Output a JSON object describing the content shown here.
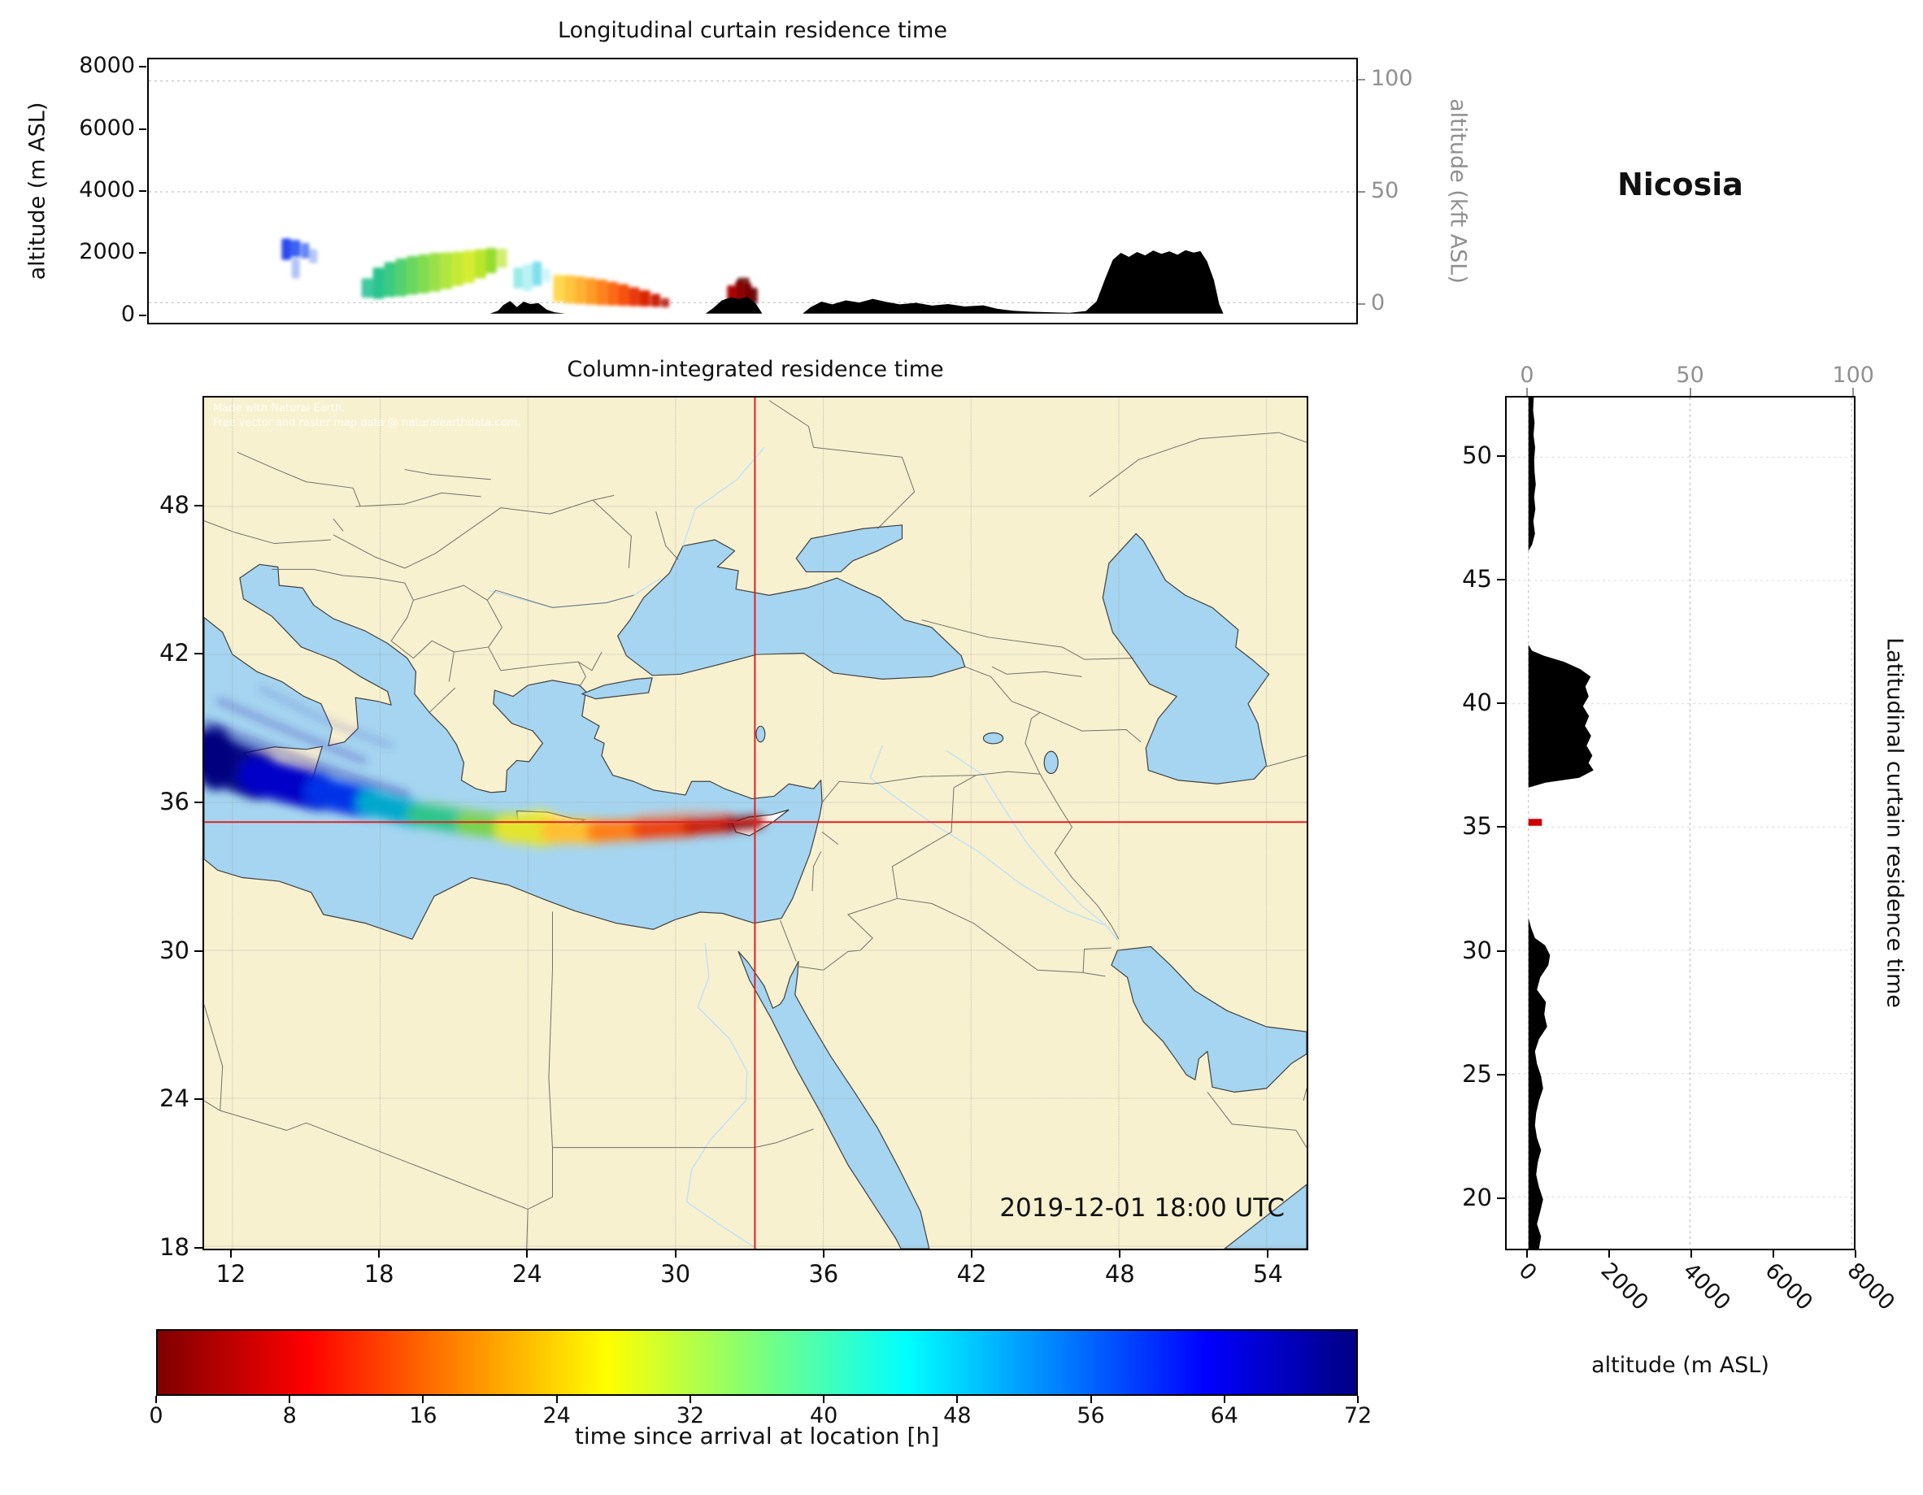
{
  "titles": {
    "longitudinal": "Longitudinal curtain residence time",
    "map": "Column-integrated residence time",
    "latitudinal": "Latitudinal curtain residence time",
    "station": "Nicosia"
  },
  "labels": {
    "alt_m": "altitude (m ASL)",
    "alt_kft": "altitude (kft ASL)",
    "colorbar": "time since arrival at location [h]",
    "timestamp": "2019-12-01 18:00 UTC",
    "attr1": "Made with Natural Earth.",
    "attr2": "Free vector and raster map data @ naturalearthdata.com."
  },
  "chart_data": {
    "type": "heatmap",
    "station": {
      "name": "Nicosia",
      "lon": 33.22,
      "lat": 35.2
    },
    "timestamp": "2019-12-01 18:00 UTC",
    "axes": {
      "lon_range": [
        10.85,
        55.63
      ],
      "lat_range": [
        17.9,
        52.42
      ],
      "alt_range_m": [
        -300,
        8300
      ],
      "alt_ticks_m": [
        0,
        2000,
        4000,
        6000,
        8000
      ],
      "kft_ticks": [
        0,
        50,
        100
      ],
      "lon_ticks": [
        12,
        18,
        24,
        30,
        36,
        42,
        48,
        54
      ],
      "lat_ticks": [
        18,
        24,
        30,
        36,
        42,
        48
      ],
      "lat_ticks_curtain": [
        20,
        25,
        30,
        35,
        40,
        45,
        50
      ]
    },
    "colorbar": {
      "ticks": [
        0,
        8,
        16,
        24,
        32,
        40,
        48,
        56,
        64,
        72
      ],
      "stops": [
        [
          0,
          "#7f0000"
        ],
        [
          12.5,
          "#ff0000"
        ],
        [
          25,
          "#ff8400"
        ],
        [
          37.5,
          "#ffff00"
        ],
        [
          50,
          "#7dff7a"
        ],
        [
          62.5,
          "#00ffff"
        ],
        [
          75,
          "#0082ff"
        ],
        [
          87.5,
          "#0000ff"
        ],
        [
          100,
          "#000084"
        ]
      ]
    },
    "lon_curtain": {
      "terrain": [
        [
          10.85,
          0
        ],
        [
          23.5,
          0
        ],
        [
          23.8,
          90
        ],
        [
          24.0,
          280
        ],
        [
          24.25,
          410
        ],
        [
          24.5,
          210
        ],
        [
          24.75,
          390
        ],
        [
          25.0,
          310
        ],
        [
          25.3,
          340
        ],
        [
          25.6,
          130
        ],
        [
          25.9,
          40
        ],
        [
          26.3,
          0
        ],
        [
          31.5,
          0
        ],
        [
          31.8,
          190
        ],
        [
          32.1,
          430
        ],
        [
          32.45,
          530
        ],
        [
          32.75,
          470
        ],
        [
          33.05,
          550
        ],
        [
          33.35,
          340
        ],
        [
          33.6,
          0
        ],
        [
          35.1,
          0
        ],
        [
          35.4,
          210
        ],
        [
          35.8,
          390
        ],
        [
          36.2,
          300
        ],
        [
          36.7,
          430
        ],
        [
          37.2,
          360
        ],
        [
          37.7,
          480
        ],
        [
          38.2,
          380
        ],
        [
          38.7,
          300
        ],
        [
          39.3,
          350
        ],
        [
          39.9,
          260
        ],
        [
          40.5,
          310
        ],
        [
          41.1,
          230
        ],
        [
          41.8,
          270
        ],
        [
          42.3,
          160
        ],
        [
          42.9,
          90
        ],
        [
          43.6,
          60
        ],
        [
          44.3,
          40
        ],
        [
          45.0,
          25
        ],
        [
          45.6,
          80
        ],
        [
          46.0,
          400
        ],
        [
          46.3,
          1100
        ],
        [
          46.6,
          1750
        ],
        [
          46.9,
          1980
        ],
        [
          47.2,
          1850
        ],
        [
          47.5,
          2010
        ],
        [
          47.8,
          1900
        ],
        [
          48.1,
          2060
        ],
        [
          48.4,
          1950
        ],
        [
          48.7,
          2030
        ],
        [
          49.0,
          1920
        ],
        [
          49.3,
          2070
        ],
        [
          49.6,
          1990
        ],
        [
          49.85,
          2040
        ],
        [
          50.1,
          1700
        ],
        [
          50.35,
          1100
        ],
        [
          50.55,
          300
        ],
        [
          50.7,
          0
        ],
        [
          55.63,
          0
        ]
      ],
      "plume": [
        [
          15.95,
          0.35,
          1750,
          2450,
          "#2a4bf0",
          1
        ],
        [
          16.3,
          0.35,
          1850,
          2400,
          "#3a62f2",
          1
        ],
        [
          16.65,
          0.3,
          1800,
          2300,
          "#5c80f5",
          0.95
        ],
        [
          16.3,
          0.3,
          1150,
          1800,
          "#7d9bf7",
          0.6
        ],
        [
          16.95,
          0.3,
          1650,
          2100,
          "#93aef8",
          0.7
        ],
        [
          18.95,
          0.42,
          520,
          1150,
          "#35c79b",
          0.95
        ],
        [
          19.37,
          0.42,
          480,
          1500,
          "#2cc490",
          1
        ],
        [
          19.79,
          0.42,
          540,
          1680,
          "#3aca82",
          1
        ],
        [
          20.21,
          0.42,
          560,
          1800,
          "#52d170",
          1
        ],
        [
          20.63,
          0.42,
          620,
          1880,
          "#69d75f",
          1
        ],
        [
          21.05,
          0.42,
          660,
          1930,
          "#82dc50",
          1
        ],
        [
          21.47,
          0.42,
          720,
          1980,
          "#9ae146",
          1
        ],
        [
          21.89,
          0.42,
          800,
          2000,
          "#b0e63c",
          1
        ],
        [
          22.31,
          0.42,
          900,
          2020,
          "#c4ea35",
          1
        ],
        [
          22.73,
          0.42,
          1000,
          2060,
          "#d4ed30",
          1
        ],
        [
          23.15,
          0.42,
          1150,
          2100,
          "#b9e62c",
          1
        ],
        [
          23.55,
          0.4,
          1320,
          2140,
          "#95dd2e",
          1
        ],
        [
          23.95,
          0.38,
          1500,
          2120,
          "#cdeb60",
          0.9
        ],
        [
          24.55,
          0.35,
          820,
          1500,
          "#86e8e2",
          0.85
        ],
        [
          24.9,
          0.35,
          730,
          1620,
          "#abeff2",
          0.8
        ],
        [
          25.25,
          0.35,
          900,
          1700,
          "#69dbea",
          0.85
        ],
        [
          25.6,
          0.3,
          1020,
          1480,
          "#c2f2f6",
          0.7
        ],
        [
          26.05,
          0.4,
          380,
          1260,
          "#ffd84e",
          1
        ],
        [
          26.45,
          0.4,
          330,
          1250,
          "#ffc63e",
          1
        ],
        [
          26.85,
          0.4,
          310,
          1210,
          "#ffb232",
          1
        ],
        [
          27.25,
          0.4,
          290,
          1160,
          "#ff9b27",
          1
        ],
        [
          27.65,
          0.4,
          270,
          1110,
          "#ff831c",
          1
        ],
        [
          28.05,
          0.4,
          260,
          1040,
          "#fc6a13",
          1
        ],
        [
          28.45,
          0.4,
          250,
          960,
          "#f5520d",
          1
        ],
        [
          28.85,
          0.4,
          240,
          860,
          "#ea3a08",
          1
        ],
        [
          29.25,
          0.4,
          230,
          760,
          "#da2605",
          1
        ],
        [
          29.65,
          0.35,
          220,
          640,
          "#c61504",
          0.95
        ],
        [
          30.0,
          0.3,
          210,
          500,
          "#b00c03",
          0.85
        ],
        [
          32.45,
          0.3,
          360,
          920,
          "#ae0202",
          1
        ],
        [
          32.75,
          0.3,
          310,
          1060,
          "#8d0000",
          1
        ],
        [
          33.05,
          0.3,
          300,
          1000,
          "#780000",
          1
        ],
        [
          33.3,
          0.25,
          320,
          840,
          "#690000",
          0.95
        ],
        [
          32.9,
          0.45,
          1000,
          1170,
          "#5e0000",
          0.85
        ]
      ]
    },
    "lat_curtain": {
      "terrain": [
        [
          17.9,
          260
        ],
        [
          18.4,
          310
        ],
        [
          18.9,
          210
        ],
        [
          19.4,
          290
        ],
        [
          19.9,
          360
        ],
        [
          20.4,
          260
        ],
        [
          20.9,
          190
        ],
        [
          21.4,
          230
        ],
        [
          21.9,
          310
        ],
        [
          22.4,
          210
        ],
        [
          22.9,
          160
        ],
        [
          23.4,
          190
        ],
        [
          23.9,
          260
        ],
        [
          24.4,
          360
        ],
        [
          24.9,
          310
        ],
        [
          25.4,
          210
        ],
        [
          25.9,
          160
        ],
        [
          26.4,
          260
        ],
        [
          26.9,
          460
        ],
        [
          27.4,
          390
        ],
        [
          27.9,
          430
        ],
        [
          28.4,
          210
        ],
        [
          28.9,
          290
        ],
        [
          29.4,
          490
        ],
        [
          29.8,
          530
        ],
        [
          30.2,
          410
        ],
        [
          30.5,
          160
        ],
        [
          30.9,
          70
        ],
        [
          31.3,
          0
        ],
        [
          36.6,
          0
        ],
        [
          36.8,
          420
        ],
        [
          37.0,
          1250
        ],
        [
          37.3,
          1600
        ],
        [
          37.6,
          1480
        ],
        [
          37.9,
          1570
        ],
        [
          38.3,
          1430
        ],
        [
          38.7,
          1540
        ],
        [
          39.1,
          1390
        ],
        [
          39.5,
          1490
        ],
        [
          39.9,
          1340
        ],
        [
          40.3,
          1480
        ],
        [
          40.7,
          1400
        ],
        [
          41.1,
          1530
        ],
        [
          41.4,
          1280
        ],
        [
          41.7,
          880
        ],
        [
          41.95,
          380
        ],
        [
          42.15,
          90
        ],
        [
          42.4,
          0
        ],
        [
          46.2,
          0
        ],
        [
          46.45,
          90
        ],
        [
          46.9,
          160
        ],
        [
          47.4,
          120
        ],
        [
          47.9,
          170
        ],
        [
          48.4,
          140
        ],
        [
          48.9,
          180
        ],
        [
          49.4,
          150
        ],
        [
          49.9,
          140
        ],
        [
          50.4,
          165
        ],
        [
          50.9,
          125
        ],
        [
          51.4,
          150
        ],
        [
          51.9,
          115
        ],
        [
          52.42,
          130
        ]
      ],
      "marker": {
        "lat0": 35.05,
        "lat1": 35.33,
        "alt": 330,
        "color": "#cc0000"
      }
    },
    "map_plume": {
      "segments": [
        {
          "p": [
            [
              10.85,
              38.0
            ],
            [
              13.0,
              37.1
            ]
          ],
          "c": "#00007f",
          "w": 1.9,
          "o": 0.95
        },
        {
          "p": [
            [
              13.0,
              37.1
            ],
            [
              15.5,
              36.45
            ]
          ],
          "c": "#0000c8",
          "w": 1.5,
          "o": 1
        },
        {
          "p": [
            [
              15.5,
              36.45
            ],
            [
              17.5,
              36.0
            ]
          ],
          "c": "#0030e8",
          "w": 1.2,
          "o": 1
        },
        {
          "p": [
            [
              17.5,
              36.0
            ],
            [
              19.5,
              35.5
            ]
          ],
          "c": "#00a8cc",
          "w": 1.0,
          "o": 1
        },
        {
          "p": [
            [
              19.5,
              35.5
            ],
            [
              21.5,
              35.15
            ]
          ],
          "c": "#2ec48c",
          "w": 0.9,
          "o": 1
        },
        {
          "p": [
            [
              21.5,
              35.15
            ],
            [
              23.2,
              34.95
            ]
          ],
          "c": "#7ad24a",
          "w": 0.9,
          "o": 1
        },
        {
          "p": [
            [
              23.2,
              34.95
            ],
            [
              25.0,
              34.85
            ]
          ],
          "c": "#e3e42e",
          "w": 1.15,
          "o": 1
        },
        {
          "p": [
            [
              25.0,
              34.85
            ],
            [
              26.8,
              34.82
            ]
          ],
          "c": "#ffc030",
          "w": 1.0,
          "o": 1
        },
        {
          "p": [
            [
              26.8,
              34.82
            ],
            [
              28.6,
              34.9
            ]
          ],
          "c": "#ff7e18",
          "w": 0.85,
          "o": 1
        },
        {
          "p": [
            [
              28.6,
              34.9
            ],
            [
              30.6,
              35.0
            ]
          ],
          "c": "#f0400a",
          "w": 0.75,
          "o": 1
        },
        {
          "p": [
            [
              30.6,
              35.0
            ],
            [
              32.2,
              35.1
            ]
          ],
          "c": "#cc1404",
          "w": 0.62,
          "o": 1
        },
        {
          "p": [
            [
              32.2,
              35.1
            ],
            [
              33.35,
              35.2
            ]
          ],
          "c": "#8a0000",
          "w": 0.5,
          "o": 1
        }
      ],
      "filaments": [
        {
          "p": [
            [
              10.9,
              39.2
            ],
            [
              13.5,
              38.2
            ],
            [
              16.5,
              37.1
            ],
            [
              19.0,
              36.3
            ]
          ],
          "c": "#2a2aa8",
          "w": 0.45,
          "o": 0.35
        },
        {
          "p": [
            [
              11.5,
              40.1
            ],
            [
              14.3,
              38.9
            ],
            [
              17.3,
              37.7
            ]
          ],
          "c": "#3c34b4",
          "w": 0.35,
          "o": 0.28
        },
        {
          "p": [
            [
              11.0,
              36.9
            ],
            [
              14.0,
              36.2
            ],
            [
              17.0,
              35.7
            ]
          ],
          "c": "#2038c0",
          "w": 0.4,
          "o": 0.4
        },
        {
          "p": [
            [
              13.2,
              40.6
            ],
            [
              15.8,
              39.3
            ],
            [
              18.4,
              38.3
            ]
          ],
          "c": "#4646bb",
          "w": 0.3,
          "o": 0.2
        },
        {
          "p": [
            [
              28.6,
              35.45
            ],
            [
              30.8,
              35.6
            ],
            [
              32.3,
              35.45
            ]
          ],
          "c": "#f2a27e",
          "w": 0.3,
          "o": 0.45
        },
        {
          "p": [
            [
              20.0,
              35.9
            ],
            [
              22.5,
              35.5
            ],
            [
              24.3,
              35.3
            ]
          ],
          "c": "#7fd24f",
          "w": 0.35,
          "o": 0.35
        }
      ],
      "blobs": [
        {
          "cx": 11.3,
          "cy": 37.8,
          "rx": 0.8,
          "ry": 1.3,
          "c": "#00007f",
          "o": 0.9
        },
        {
          "cx": 24.5,
          "cy": 34.95,
          "rx": 0.9,
          "ry": 0.75,
          "c": "#efe82c",
          "o": 0.75
        },
        {
          "cx": 27.6,
          "cy": 34.85,
          "rx": 0.8,
          "ry": 0.4,
          "c": "#ffd9b8",
          "o": 0.55
        }
      ]
    }
  }
}
